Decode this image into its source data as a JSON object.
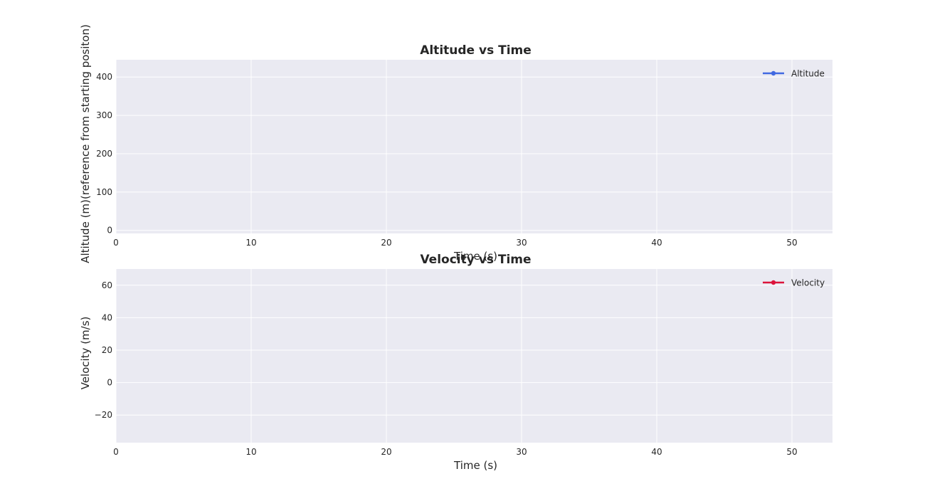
{
  "chart_data": [
    {
      "type": "line",
      "title": "Altitude vs Time",
      "xlabel": "Time (s)",
      "ylabel": "Altitude (m)(reference from starting positon)",
      "xlim": [
        0,
        53
      ],
      "ylim": [
        -8,
        445
      ],
      "x_ticks": [
        "0",
        "10",
        "20",
        "30",
        "40",
        "50"
      ],
      "y_ticks": [
        "0",
        "100",
        "200",
        "300",
        "400"
      ],
      "x_tick_values": [
        0,
        10,
        20,
        30,
        40,
        50
      ],
      "y_tick_values": [
        0,
        100,
        200,
        300,
        400
      ],
      "grid": true,
      "legend_placement": "top-right",
      "series": [
        {
          "name": "Altitude",
          "color": "#4169e1",
          "marker": "circle",
          "x": [],
          "y": []
        }
      ]
    },
    {
      "type": "line",
      "title": "Velocity vs Time",
      "xlabel": "Time (s)",
      "ylabel": "Velocity (m/s)",
      "xlim": [
        0,
        53
      ],
      "ylim": [
        -37,
        70
      ],
      "x_ticks": [
        "0",
        "10",
        "20",
        "30",
        "40",
        "50"
      ],
      "y_ticks": [
        "−20",
        "0",
        "20",
        "40",
        "60"
      ],
      "x_tick_values": [
        0,
        10,
        20,
        30,
        40,
        50
      ],
      "y_tick_values": [
        -20,
        0,
        20,
        40,
        60
      ],
      "grid": true,
      "legend_placement": "top-right",
      "series": [
        {
          "name": "Velocity",
          "color": "#dc143c",
          "marker": "circle",
          "x": [],
          "y": []
        }
      ]
    }
  ]
}
